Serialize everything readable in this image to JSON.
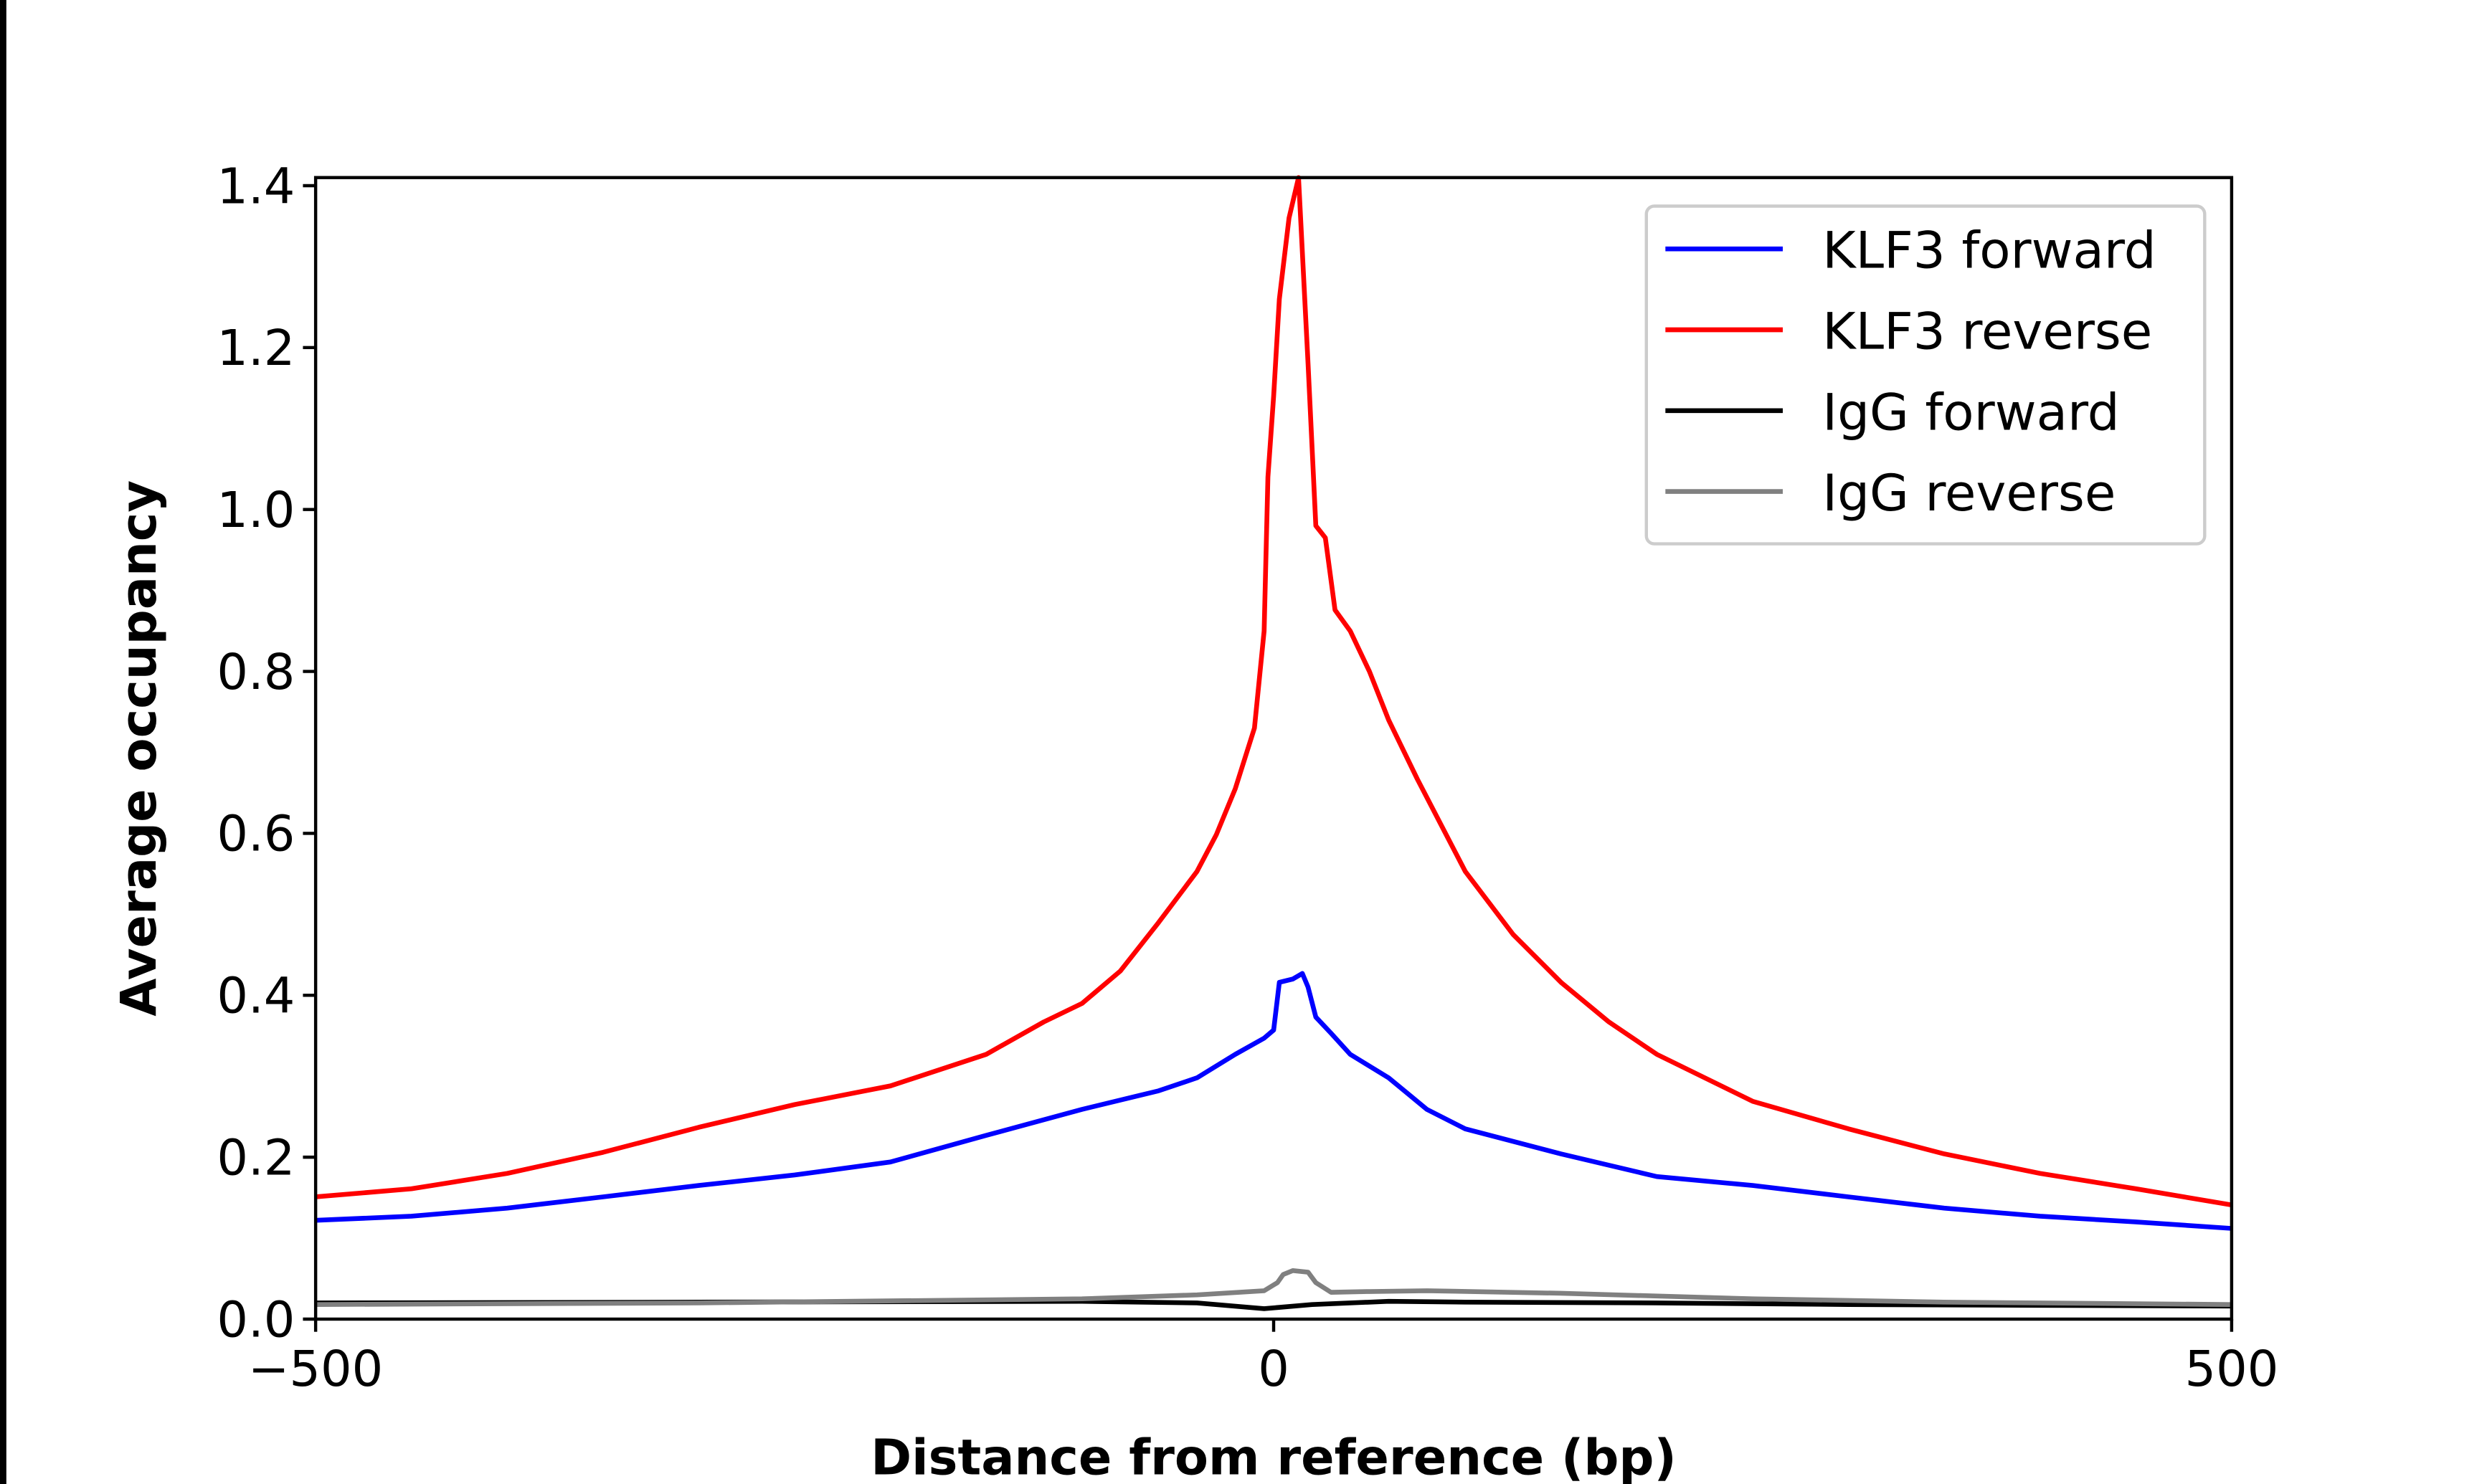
{
  "chart_data": {
    "type": "line",
    "xlabel": "Distance from reference (bp)",
    "ylabel": "Average occupancy",
    "xlim": [
      -500,
      500
    ],
    "ylim": [
      0,
      1.41
    ],
    "xticks": [
      -500,
      0,
      500
    ],
    "xtick_labels": [
      "−500",
      "0",
      "500"
    ],
    "yticks": [
      0.0,
      0.2,
      0.4,
      0.6,
      0.8,
      1.0,
      1.2,
      1.4
    ],
    "ytick_labels": [
      "0.0",
      "0.2",
      "0.4",
      "0.6",
      "0.8",
      "1.0",
      "1.2",
      "1.4"
    ],
    "grid": false,
    "legend_position": "top-right",
    "series": [
      {
        "name": "KLF3 forward",
        "color": "#0000ff",
        "x": [
          -500,
          -450,
          -400,
          -350,
          -300,
          -250,
          -200,
          -150,
          -100,
          -60,
          -40,
          -20,
          -5,
          0,
          3,
          10,
          15,
          18,
          22,
          30,
          40,
          60,
          80,
          100,
          150,
          200,
          250,
          300,
          350,
          400,
          450,
          500
        ],
        "y": [
          0.122,
          0.127,
          0.137,
          0.151,
          0.165,
          0.178,
          0.194,
          0.227,
          0.259,
          0.282,
          0.298,
          0.327,
          0.347,
          0.357,
          0.416,
          0.42,
          0.427,
          0.41,
          0.373,
          0.353,
          0.327,
          0.298,
          0.259,
          0.235,
          0.204,
          0.176,
          0.165,
          0.151,
          0.137,
          0.127,
          0.12,
          0.112
        ]
      },
      {
        "name": "KLF3 reverse",
        "color": "#ff0000",
        "x": [
          -500,
          -450,
          -400,
          -350,
          -300,
          -250,
          -200,
          -150,
          -120,
          -100,
          -80,
          -60,
          -40,
          -30,
          -20,
          -10,
          -5,
          -3,
          0,
          3,
          8,
          13,
          18,
          22,
          27,
          32,
          40,
          50,
          60,
          75,
          100,
          125,
          150,
          175,
          200,
          250,
          300,
          350,
          400,
          450,
          500
        ],
        "y": [
          0.151,
          0.161,
          0.18,
          0.206,
          0.237,
          0.265,
          0.288,
          0.327,
          0.367,
          0.39,
          0.43,
          0.49,
          0.553,
          0.598,
          0.655,
          0.73,
          0.85,
          1.04,
          1.14,
          1.26,
          1.36,
          1.41,
          1.18,
          0.98,
          0.965,
          0.876,
          0.85,
          0.8,
          0.74,
          0.667,
          0.553,
          0.475,
          0.416,
          0.367,
          0.327,
          0.269,
          0.235,
          0.204,
          0.18,
          0.161,
          0.141
        ]
      },
      {
        "name": "IgG forward",
        "color": "#000000",
        "x": [
          -500,
          -300,
          -100,
          -40,
          -5,
          0,
          20,
          60,
          100,
          200,
          300,
          400,
          500
        ],
        "y": [
          0.02,
          0.021,
          0.022,
          0.02,
          0.013,
          0.014,
          0.018,
          0.022,
          0.021,
          0.02,
          0.018,
          0.017,
          0.016
        ]
      },
      {
        "name": "IgG reverse",
        "color": "#808080",
        "x": [
          -500,
          -300,
          -100,
          -40,
          -5,
          2,
          5,
          10,
          18,
          22,
          30,
          50,
          80,
          150,
          250,
          350,
          500
        ],
        "y": [
          0.018,
          0.02,
          0.025,
          0.03,
          0.035,
          0.045,
          0.055,
          0.06,
          0.058,
          0.045,
          0.033,
          0.034,
          0.035,
          0.032,
          0.025,
          0.021,
          0.018
        ]
      }
    ]
  }
}
